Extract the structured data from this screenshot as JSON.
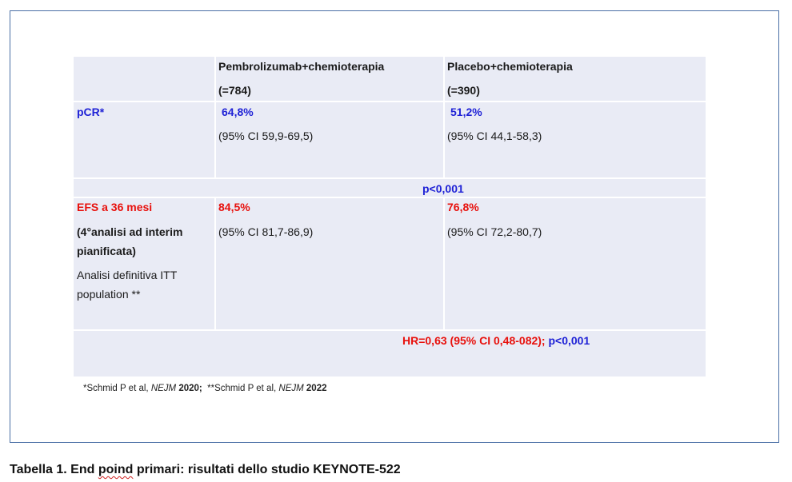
{
  "table": {
    "header": {
      "col1": "",
      "col2_line1": "Pembrolizumab+chemioterapia",
      "col2_line2": "(=784)",
      "col3_line1": "Placebo+chemioterapia",
      "col3_line2": "(=390)"
    },
    "pcr": {
      "label": "pCR*",
      "pembro_value": "64,8%",
      "pembro_ci": "(95% CI 59,9-69,5)",
      "placebo_value": "51,2%",
      "placebo_ci": "(95% CI 44,1-58,3)",
      "p_value": "p<0,001"
    },
    "efs": {
      "label": "EFS a 36 mesi",
      "sublabel": "(4°analisi ad interim pianificata)",
      "note": "Analisi definitiva ITT population **",
      "pembro_value": "84,5%",
      "pembro_ci": "(95% CI 81,7-86,9)",
      "placebo_value": "76,8%",
      "placebo_ci": "(95% CI 72,2-80,7)",
      "hr": "HR=0,63 (95% CI 0,48-082);",
      "hr_p": "p<0,001"
    }
  },
  "footnote": {
    "ref1_prefix": "*Schmid P et al, ",
    "ref1_journal": "NEJM",
    "ref1_year": " 2020;",
    "ref2_prefix": "  **Schmid P et al, ",
    "ref2_journal": "NEJM",
    "ref2_year": " 2022"
  },
  "caption": {
    "part1": "Tabella 1. End ",
    "misspelled": "poind",
    "part2": " primari: risultati dello studio KEYNOTE-522"
  },
  "colors": {
    "blue": "#1f22d6",
    "red": "#e8100c",
    "table_bg": "#e9ebf5",
    "frame_border": "#4a6fa5"
  }
}
